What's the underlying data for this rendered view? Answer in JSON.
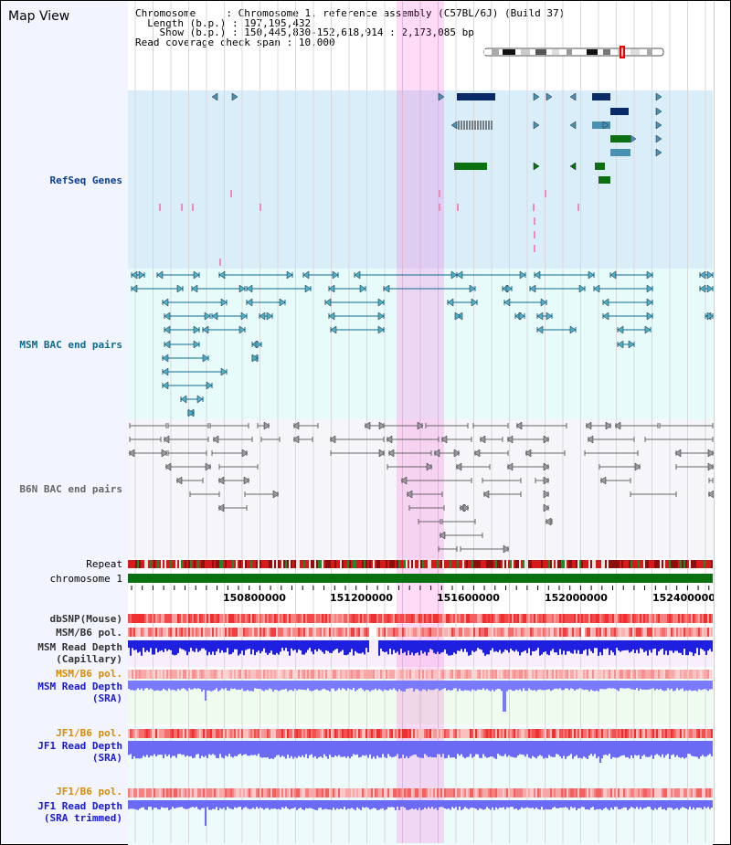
{
  "view": {
    "title": "Map View"
  },
  "info": {
    "chromosome_key": "Chromosome",
    "chromosome_value": "Chromosome 1, reference assembly (C57BL/6J) (Build 37)",
    "length_key": "Length (b.p.)",
    "length_value": "197,195,432",
    "show_key": "Show (b.p.)",
    "show_value": "150,445,830-152,618,914 : 2,173,085 bp",
    "span_key": "Read coverage check span",
    "span_value": "10,000"
  },
  "axis": {
    "ticks": [
      "150800000",
      "151200000",
      "151600000",
      "152000000",
      "152400000"
    ]
  },
  "tracks": {
    "refseq": "RefSeq Genes",
    "msm_bac": "MSM BAC end pairs",
    "b6n_bac": "B6N BAC end pairs",
    "repeat": "Repeat",
    "chromosome": "chromosome 1",
    "dbsnp": "dbSNP(Mouse)",
    "msm_b6_pol": "MSM/B6 pol.",
    "msm_depth_cap_1": "MSM Read Depth",
    "msm_depth_cap_2": "(Capillary)",
    "msm_b6_pol2": "MSM/B6 pol.",
    "msm_depth_sra_1": "MSM Read Depth",
    "msm_depth_sra_2": "(SRA)",
    "jf1_pol": "JF1/B6 pol.",
    "jf1_depth_1": "JF1 Read Depth",
    "jf1_depth_2": "(SRA)",
    "jf1_pol2": "JF1/B6 pol.",
    "jf1_trim_1": "JF1 Read Depth",
    "jf1_trim_2": "(SRA trimmed)"
  },
  "colors": {
    "refseq_bg": "#daeefa",
    "msm_bg": "#e8fbfb",
    "b6n_bg": "#f6f6fa",
    "chromosome_green": "#0a7010",
    "gene_dark": "#0a2a66",
    "gene_green": "#0a7010",
    "msm_line": "#0f6b8c",
    "b6n_line": "#666666",
    "highlight": "#ff9ee6",
    "depth_blue": "#1f1fe0",
    "sra_blue": "#7a7aff",
    "label_blue": "#0b3d91",
    "label_orange": "#d98c00",
    "label_teal": "#0b6b8c"
  }
}
